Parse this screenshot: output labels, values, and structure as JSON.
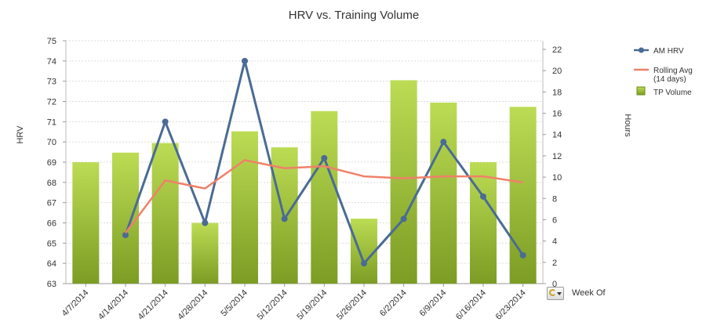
{
  "chart_data": {
    "type": "bar",
    "title": "HRV vs. Training Volume",
    "categories": [
      "4/7/2014",
      "4/14/2014",
      "4/21/2014",
      "4/28/2014",
      "5/5/2014",
      "5/12/2014",
      "5/19/2014",
      "5/26/2014",
      "6/2/2014",
      "6/9/2014",
      "6/16/2014",
      "6/23/2014"
    ],
    "y_left": {
      "label": "HRV",
      "range": [
        63,
        75
      ],
      "ticks": [
        63,
        64,
        65,
        66,
        67,
        68,
        69,
        70,
        71,
        72,
        73,
        74,
        75
      ]
    },
    "y_right": {
      "label": "Hours",
      "range": [
        0,
        23
      ],
      "ticks": [
        0,
        2,
        4,
        6,
        8,
        10,
        12,
        14,
        16,
        18,
        20,
        22
      ]
    },
    "xlabel": "Week Of",
    "grid": true,
    "legend_position": "right",
    "series": [
      {
        "name": "TP Volume",
        "kind": "bar",
        "axis": "right",
        "color": "#9cc43a",
        "values": [
          11.4,
          12.3,
          13.2,
          5.7,
          14.3,
          12.8,
          16.2,
          6.1,
          19.1,
          17.0,
          11.4,
          16.6
        ]
      },
      {
        "name": "AM HRV",
        "kind": "line",
        "axis": "left",
        "color": "#4a6b94",
        "values": [
          null,
          65.4,
          71.0,
          66.0,
          74.0,
          66.2,
          69.2,
          64.0,
          66.2,
          70.0,
          67.3,
          64.4
        ]
      },
      {
        "name": "Rolling Avg\n(14 days)",
        "kind": "line",
        "axis": "left",
        "color": "#f0806a",
        "values": [
          null,
          65.5,
          68.1,
          67.7,
          69.1,
          68.7,
          68.8,
          68.3,
          68.2,
          68.3,
          68.3,
          68.0
        ]
      }
    ]
  },
  "legend": [
    {
      "key": "am-hrv",
      "lines": [
        "AM HRV"
      ],
      "color": "#4a6b94",
      "kind": "line-marker"
    },
    {
      "key": "rolling-avg",
      "lines": [
        "Rolling Avg",
        "(14 days)"
      ],
      "color": "#f0806a",
      "kind": "line"
    },
    {
      "key": "tp-volume",
      "lines": [
        "TP Volume"
      ],
      "color": "#9cc43a",
      "kind": "box"
    }
  ],
  "controls": {
    "x_label": "Week Of",
    "cycle_icon": "cycle-dimension-icon"
  }
}
